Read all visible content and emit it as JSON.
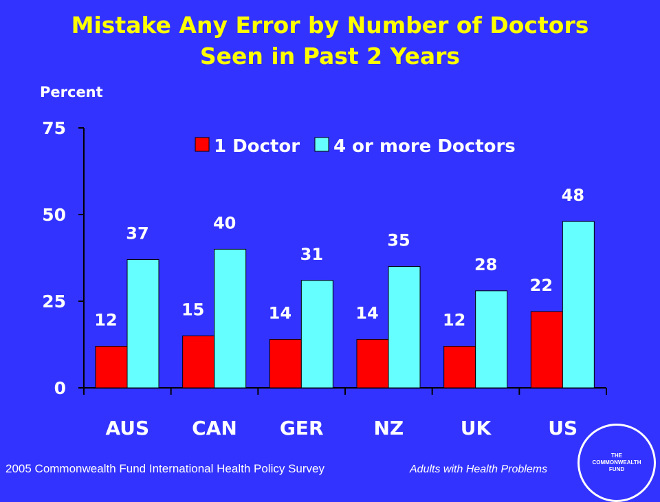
{
  "title_line1": "Mistake Any Error by Number of Doctors",
  "title_line2": "Seen in Past 2 Years",
  "ylabel": "Percent",
  "source": "2005 Commonwealth Fund International Health Policy Survey",
  "note": "Adults with Health Problems",
  "logo_lines": [
    "THE",
    "COMMONWEALTH",
    "FUND"
  ],
  "colors": {
    "background": "#3333ff",
    "title": "#ffff00",
    "series1": "#ff0000",
    "series2": "#66ffff",
    "text": "#ffffff"
  },
  "chart_data": {
    "type": "bar",
    "title": "Mistake Any Error by Number of Doctors Seen in Past 2 Years",
    "ylabel": "Percent",
    "xlabel": "",
    "categories": [
      "AUS",
      "CAN",
      "GER",
      "NZ",
      "UK",
      "US"
    ],
    "series": [
      {
        "name": "1 Doctor",
        "values": [
          12,
          15,
          14,
          14,
          12,
          22
        ]
      },
      {
        "name": "4 or more Doctors",
        "values": [
          37,
          40,
          31,
          35,
          28,
          48
        ]
      }
    ],
    "ylim": [
      0,
      75
    ],
    "yticks": [
      0,
      25,
      50,
      75
    ],
    "legend_position": "top-right",
    "grid": false
  }
}
